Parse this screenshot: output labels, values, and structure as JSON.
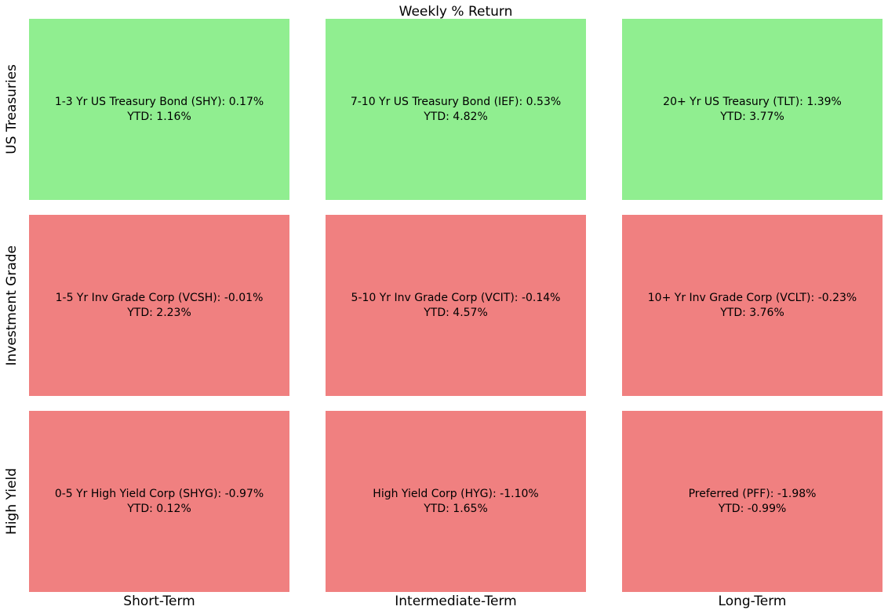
{
  "title": "Weekly % Return",
  "colors": {
    "positive_cell": "#90ee90",
    "negative_cell": "#f08080",
    "text": "#000000",
    "background": "#ffffff"
  },
  "grid": {
    "row_labels": [
      "US Treasuries",
      "Investment Grade",
      "High Yield"
    ],
    "column_labels": [
      "Short-Term",
      "Intermediate-Term",
      "Long-Term"
    ],
    "cells": [
      {
        "line1": "1-3 Yr US Treasury Bond (SHY): 0.17%",
        "line2": "YTD: 1.16%",
        "color": "#90ee90"
      },
      {
        "line1": "7-10 Yr US Treasury Bond (IEF): 0.53%",
        "line2": "YTD: 4.82%",
        "color": "#90ee90"
      },
      {
        "line1": "20+ Yr US Treasury (TLT): 1.39%",
        "line2": "YTD: 3.77%",
        "color": "#90ee90"
      },
      {
        "line1": "1-5 Yr Inv Grade Corp (VCSH): -0.01%",
        "line2": "YTD: 2.23%",
        "color": "#f08080"
      },
      {
        "line1": "5-10 Yr Inv Grade Corp (VCIT): -0.14%",
        "line2": "YTD: 4.57%",
        "color": "#f08080"
      },
      {
        "line1": "10+ Yr Inv Grade Corp (VCLT): -0.23%",
        "line2": "YTD: 3.76%",
        "color": "#f08080"
      },
      {
        "line1": "0-5 Yr High Yield Corp (SHYG): -0.97%",
        "line2": "YTD: 0.12%",
        "color": "#f08080"
      },
      {
        "line1": "High Yield Corp (HYG): -1.10%",
        "line2": "YTD: 1.65%",
        "color": "#f08080"
      },
      {
        "line1": "Preferred (PFF): -1.98%",
        "line2": "YTD: -0.99%",
        "color": "#f08080"
      }
    ]
  },
  "chart_data": {
    "type": "heatmap",
    "title": "Weekly % Return",
    "rows": [
      "US Treasuries",
      "Investment Grade",
      "High Yield"
    ],
    "columns": [
      "Short-Term",
      "Intermediate-Term",
      "Long-Term"
    ],
    "cells": [
      [
        {
          "name": "1-3 Yr US Treasury Bond",
          "ticker": "SHY",
          "weekly_return_pct": 0.17,
          "ytd_return_pct": 1.16
        },
        {
          "name": "7-10 Yr US Treasury Bond",
          "ticker": "IEF",
          "weekly_return_pct": 0.53,
          "ytd_return_pct": 4.82
        },
        {
          "name": "20+ Yr US Treasury",
          "ticker": "TLT",
          "weekly_return_pct": 1.39,
          "ytd_return_pct": 3.77
        }
      ],
      [
        {
          "name": "1-5 Yr Inv Grade Corp",
          "ticker": "VCSH",
          "weekly_return_pct": -0.01,
          "ytd_return_pct": 2.23
        },
        {
          "name": "5-10 Yr Inv Grade Corp",
          "ticker": "VCIT",
          "weekly_return_pct": -0.14,
          "ytd_return_pct": 4.57
        },
        {
          "name": "10+ Yr Inv Grade Corp",
          "ticker": "VCLT",
          "weekly_return_pct": -0.23,
          "ytd_return_pct": 3.76
        }
      ],
      [
        {
          "name": "0-5 Yr High Yield Corp",
          "ticker": "SHYG",
          "weekly_return_pct": -0.97,
          "ytd_return_pct": 0.12
        },
        {
          "name": "High Yield Corp",
          "ticker": "HYG",
          "weekly_return_pct": -1.1,
          "ytd_return_pct": 1.65
        },
        {
          "name": "Preferred",
          "ticker": "PFF",
          "weekly_return_pct": -1.98,
          "ytd_return_pct": -0.99
        }
      ]
    ],
    "color_coding": "green cell = positive weekly return, red cell = negative weekly return",
    "legend_position": "none",
    "grid": false
  }
}
